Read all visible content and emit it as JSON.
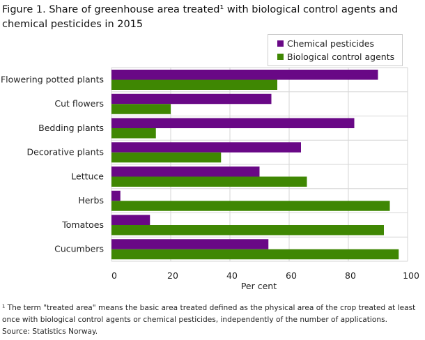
{
  "chart_data": {
    "type": "bar",
    "orientation": "horizontal",
    "title": "Figure 1. Share of greenhouse area treated¹ with biological control agents and chemical pesticides in 2015",
    "categories": [
      "Flowering potted plants",
      "Cut flowers",
      "Bedding plants",
      "Decorative plants",
      "Lettuce",
      "Herbs",
      "Tomatoes",
      "Cucumbers"
    ],
    "series": [
      {
        "name": "Chemical pesticides",
        "color": "#690886",
        "values": [
          90,
          54,
          82,
          64,
          50,
          3,
          13,
          53
        ]
      },
      {
        "name": "Biological control agents",
        "color": "#3f8703",
        "values": [
          56,
          20,
          15,
          37,
          66,
          94,
          92,
          97
        ]
      }
    ],
    "xlabel": "Per cent",
    "ylabel": "",
    "xlim": [
      0,
      100
    ],
    "xticks": [
      "0",
      "20",
      "40",
      "60",
      "80",
      "100"
    ],
    "grid": true,
    "legend_position": "top-right"
  },
  "footnote": "¹ The term \"treated area\" means the basic area treated defined as the physical area of the crop treated at least once with biological control agents or chemical pesticides, independently of the number of applications.",
  "source": "Source: Statistics Norway."
}
